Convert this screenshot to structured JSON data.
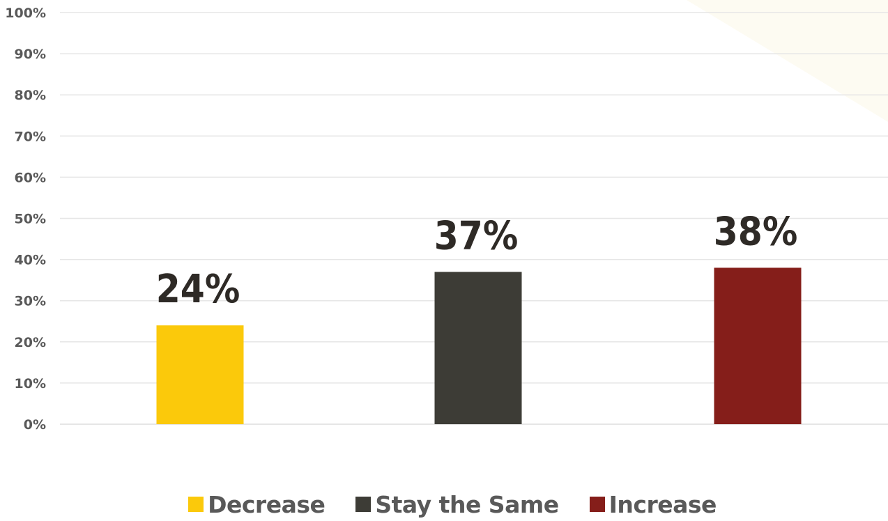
{
  "chart_data": {
    "type": "bar",
    "categories": [
      "Decrease",
      "Stay the Same",
      "Increase"
    ],
    "values": [
      24,
      37,
      38
    ],
    "data_labels": [
      "24%",
      "37%",
      "38%"
    ],
    "colors": [
      "#FBC90B",
      "#3D3C36",
      "#851E1A"
    ],
    "y_ticks": [
      "0%",
      "10%",
      "20%",
      "30%",
      "40%",
      "50%",
      "60%",
      "70%",
      "80%",
      "90%",
      "100%"
    ],
    "ylim": [
      0,
      100
    ],
    "grid": true,
    "legend_position": "bottom",
    "title": "",
    "xlabel": "",
    "ylabel": ""
  },
  "legend": {
    "items": [
      {
        "label": "Decrease",
        "color": "#FBC90B"
      },
      {
        "label": "Stay the Same",
        "color": "#3D3C36"
      },
      {
        "label": "Increase",
        "color": "#851E1A"
      }
    ]
  },
  "style": {
    "gridline_color": "#E6E6E6",
    "tick_color": "#595959",
    "data_label_color": "#2E2A26",
    "corner_accent_color": "#FDFBF2"
  }
}
